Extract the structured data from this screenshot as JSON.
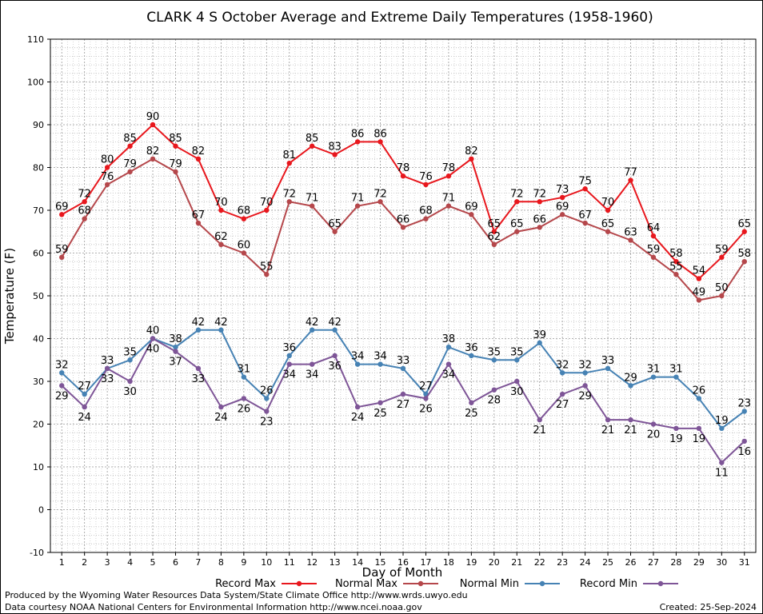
{
  "chart_data": {
    "type": "line",
    "title": "CLARK 4 S October Average and Extreme Daily Temperatures (1958-1960)",
    "xlabel": "Day of Month",
    "ylabel": "Temperature (F)",
    "ylim": [
      -10,
      110
    ],
    "xlim": [
      1,
      31
    ],
    "grid": true,
    "legend_position": "bottom",
    "x": [
      1,
      2,
      3,
      4,
      5,
      6,
      7,
      8,
      9,
      10,
      11,
      12,
      13,
      14,
      15,
      16,
      17,
      18,
      19,
      20,
      21,
      22,
      23,
      24,
      25,
      26,
      27,
      28,
      29,
      30,
      31
    ],
    "y_ticks": [
      -10,
      0,
      10,
      20,
      30,
      40,
      50,
      60,
      70,
      80,
      90,
      100,
      110
    ],
    "series": [
      {
        "name": "Record Max",
        "color": "#e8171d",
        "label_pos": "above",
        "values": [
          69,
          72,
          80,
          85,
          90,
          85,
          82,
          70,
          68,
          70,
          81,
          85,
          83,
          86,
          86,
          78,
          76,
          78,
          82,
          65,
          72,
          72,
          73,
          75,
          70,
          77,
          64,
          58,
          54,
          59,
          65
        ]
      },
      {
        "name": "Normal Max",
        "color": "#b5474b",
        "label_pos": "above",
        "values": [
          59,
          68,
          76,
          79,
          82,
          79,
          67,
          62,
          60,
          55,
          72,
          71,
          65,
          71,
          72,
          66,
          68,
          71,
          69,
          62,
          65,
          66,
          69,
          67,
          65,
          63,
          59,
          55,
          49,
          50,
          58
        ]
      },
      {
        "name": "Normal Min",
        "color": "#4682b4",
        "label_pos": "above",
        "values": [
          32,
          27,
          33,
          35,
          40,
          38,
          42,
          42,
          31,
          26,
          36,
          42,
          42,
          34,
          34,
          33,
          27,
          38,
          36,
          35,
          35,
          39,
          32,
          32,
          33,
          29,
          31,
          31,
          26,
          19,
          23
        ]
      },
      {
        "name": "Record Min",
        "color": "#7e5597",
        "label_pos": "below",
        "values": [
          29,
          24,
          33,
          30,
          40,
          37,
          33,
          24,
          26,
          23,
          34,
          34,
          36,
          24,
          25,
          27,
          26,
          34,
          25,
          28,
          30,
          21,
          27,
          29,
          21,
          21,
          20,
          19,
          19,
          11,
          16
        ]
      }
    ]
  },
  "footer": {
    "produced_by": "Produced by the Wyoming Water Resources Data System/State Climate Office http://www.wrds.uwyo.edu",
    "courtesy": "Data courtesy NOAA National Centers for Environmental Information http://www.ncei.noaa.gov",
    "created": "Created:  25-Sep-2024"
  }
}
